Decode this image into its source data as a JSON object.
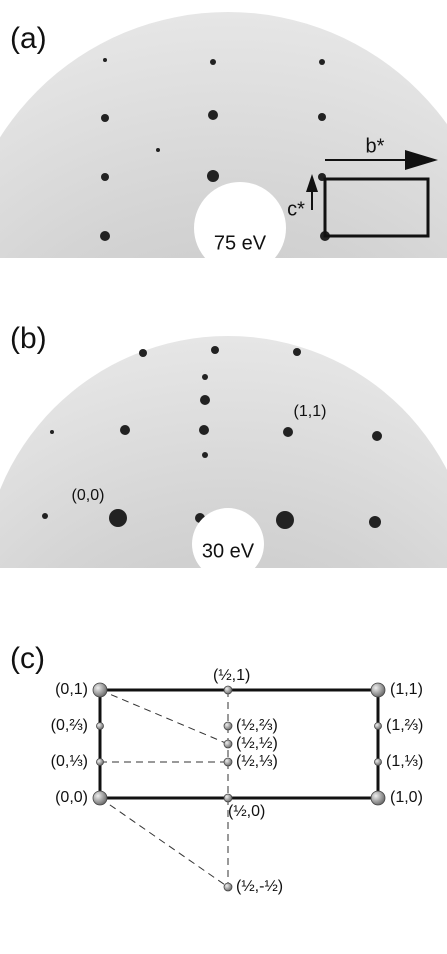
{
  "panel_a": {
    "label": "(a)",
    "energy": "75 eV",
    "axis_b": "b*",
    "axis_c": "c*"
  },
  "panel_b": {
    "label": "(b)",
    "energy": "30 eV",
    "spot_11": "(1,1)",
    "spot_00": "(0,0)"
  },
  "panel_c": {
    "label": "(c)",
    "points": [
      "(0,1)",
      "(½,1)",
      "(1,1)",
      "(0,⅔)",
      "(½,⅔)",
      "(1,⅔)",
      "(½,½)",
      "(0,⅓)",
      "(½,⅓)",
      "(1,⅓)",
      "(0,0)",
      "(½,0)",
      "(1,0)",
      "(½,-½)"
    ]
  }
}
